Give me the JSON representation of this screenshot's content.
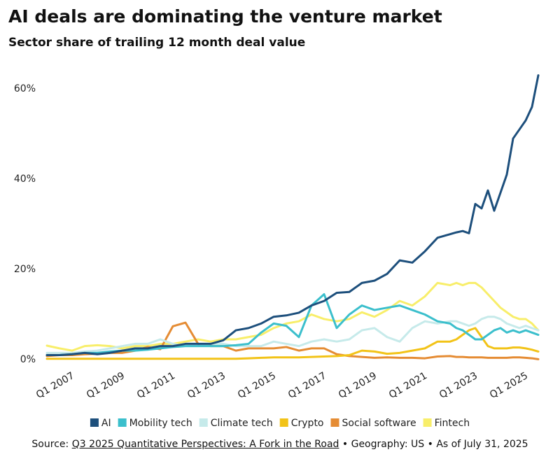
{
  "chart_data": {
    "type": "line",
    "title": "AI deals are dominating the venture market",
    "subtitle": "Sector share of trailing 12 month deal value",
    "x": [
      2006,
      2006.5,
      2007,
      2007.5,
      2008,
      2008.5,
      2009,
      2009.5,
      2010,
      2010.5,
      2011,
      2011.5,
      2012,
      2012.5,
      2013,
      2013.5,
      2014,
      2014.5,
      2015,
      2015.5,
      2016,
      2016.5,
      2017,
      2017.5,
      2018,
      2018.5,
      2019,
      2019.5,
      2020,
      2020.5,
      2021,
      2021.5,
      2022,
      2022.25,
      2022.5,
      2022.75,
      2023,
      2023.25,
      2023.5,
      2023.75,
      2024,
      2024.25,
      2024.5,
      2024.75,
      2025,
      2025.25,
      2025.5
    ],
    "xlim": [
      2006,
      2025.5
    ],
    "xticks": [
      {
        "value": 2007,
        "label": "Q1 2007"
      },
      {
        "value": 2009,
        "label": "Q1 2009"
      },
      {
        "value": 2011,
        "label": "Q1 2011"
      },
      {
        "value": 2013,
        "label": "Q1 2013"
      },
      {
        "value": 2015,
        "label": "Q1 2015"
      },
      {
        "value": 2017,
        "label": "Q1 2017"
      },
      {
        "value": 2019,
        "label": "Q1 2019"
      },
      {
        "value": 2021,
        "label": "Q1 2021"
      },
      {
        "value": 2023,
        "label": "Q1 2023"
      },
      {
        "value": 2025,
        "label": "Q1 2025"
      }
    ],
    "ylim": [
      -1,
      64
    ],
    "yticks": [
      {
        "value": 0,
        "label": "0%"
      },
      {
        "value": 20,
        "label": "20%"
      },
      {
        "value": 40,
        "label": "40%"
      },
      {
        "value": 60,
        "label": "60%"
      }
    ],
    "grid": false,
    "series": [
      {
        "name": "AI",
        "color": "#1d4f7c",
        "values": [
          1,
          1,
          1.2,
          1.5,
          1.2,
          1.5,
          2,
          2.5,
          2.5,
          3,
          3,
          3.5,
          3.5,
          3.5,
          4.3,
          6.5,
          7,
          8,
          9.5,
          9.8,
          10.4,
          12,
          13,
          14.8,
          15,
          17,
          17.5,
          19,
          22,
          21.5,
          24,
          27,
          27.8,
          28.2,
          28.5,
          28,
          34.5,
          33.5,
          37.5,
          33,
          37,
          41,
          49,
          51,
          53,
          56,
          63
        ]
      },
      {
        "name": "Mobility tech",
        "color": "#3bbfcc",
        "values": [
          1,
          1,
          1.2,
          1.5,
          1.5,
          1.8,
          2,
          2,
          2.2,
          2.5,
          2.8,
          3,
          3,
          3,
          3,
          3.2,
          3.5,
          6,
          8,
          7.5,
          5,
          12,
          14.5,
          7,
          10,
          12,
          11,
          11.5,
          12,
          11,
          10,
          8.5,
          8,
          7,
          6.5,
          5.5,
          4.5,
          4.5,
          5.5,
          6.5,
          7,
          6,
          6.5,
          6,
          6.5,
          6,
          5.5
        ]
      },
      {
        "name": "Climate tech",
        "color": "#c6eaea",
        "values": [
          1.5,
          1.5,
          1.5,
          1.8,
          2,
          2.5,
          3,
          3.5,
          3.5,
          4.5,
          3.5,
          3,
          3,
          3.5,
          3.5,
          3,
          3,
          3,
          4,
          3.5,
          3,
          4,
          4.5,
          4,
          4.5,
          6.5,
          7,
          5,
          4,
          7,
          8.5,
          8,
          8.5,
          8.5,
          8,
          7.5,
          8,
          9,
          9.5,
          9.5,
          9,
          8,
          7.5,
          7,
          7.5,
          7,
          6.5
        ]
      },
      {
        "name": "Crypto",
        "color": "#f2c318",
        "values": [
          0.2,
          0.2,
          0.2,
          0.2,
          0.2,
          0.2,
          0.2,
          0.2,
          0.2,
          0.2,
          0.2,
          0.2,
          0.2,
          0.2,
          0.2,
          0.2,
          0.3,
          0.4,
          0.5,
          0.5,
          0.5,
          0.6,
          0.7,
          0.8,
          1,
          2,
          1.8,
          1.3,
          1.5,
          2,
          2.5,
          4,
          4,
          4.5,
          5.5,
          6.5,
          7,
          5,
          3,
          2.5,
          2.5,
          2.5,
          2.7,
          2.7,
          2.5,
          2.2,
          1.8
        ]
      },
      {
        "name": "Social software",
        "color": "#e58c34",
        "values": [
          0.8,
          1,
          1,
          1.2,
          1.3,
          1.5,
          1.5,
          2,
          2.8,
          2.3,
          7.4,
          8.2,
          3.5,
          3,
          3,
          2,
          2.5,
          2.5,
          2.5,
          2.8,
          2,
          2.5,
          2.5,
          1.2,
          0.8,
          0.6,
          0.4,
          0.5,
          0.4,
          0.4,
          0.3,
          0.7,
          0.8,
          0.6,
          0.6,
          0.5,
          0.5,
          0.5,
          0.4,
          0.4,
          0.4,
          0.4,
          0.5,
          0.5,
          0.4,
          0.3,
          0.1
        ]
      },
      {
        "name": "Fintech",
        "color": "#f8ee6a",
        "values": [
          3.1,
          2.5,
          2,
          3,
          3.2,
          3,
          2.5,
          3,
          3,
          3.5,
          3.5,
          4,
          4.5,
          4,
          4.5,
          4.5,
          5,
          5.5,
          7,
          8,
          8.5,
          10,
          9,
          8.5,
          9,
          10.5,
          9.5,
          11,
          13,
          12,
          14,
          17,
          16.5,
          17,
          16.5,
          17,
          17,
          16,
          14.5,
          13,
          11.5,
          10.5,
          9.5,
          9,
          9,
          8,
          6.5
        ]
      }
    ],
    "source_label": "Source:",
    "source_link": "Q3 2025 Quantitative Perspectives: A Fork in the Road",
    "source_rest": "• Geography: US • As of July 31, 2025"
  }
}
